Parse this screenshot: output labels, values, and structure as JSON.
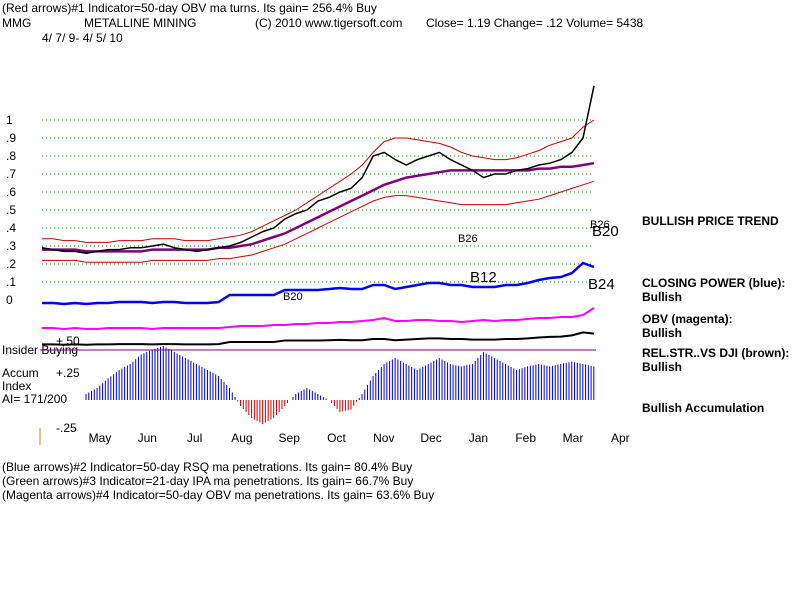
{
  "header": {
    "line1": "(Red arrows)#1 Indicator=50-day OBV ma turns.  Its gain= 256.4% Buy",
    "ticker": "MMG",
    "company": "METALLINE  MINING",
    "copyright": "(C) 2010 www.tigersoft.com",
    "quote": "Close=  1.19  Change= .12 Volume= 5438",
    "date_range": "4/ 7/ 9- 4/ 5/ 10"
  },
  "footer": {
    "lines": [
      "(Blue arrows)#2 Indicator=50-day RSQ ma penetrations.  Its gain= 80.4% Buy",
      "(Green arrows)#3 Indicator=21-day IPA ma penetrations.  Its gain= 66.7% Buy",
      "(Magenta arrows)#4 Indicator=50-day OBV ma penetrations.  Its gain= 63.6% Buy"
    ]
  },
  "right_panel": {
    "price_trend": "BULLISH PRICE TREND",
    "closing_power": "CLOSING POWER (blue):",
    "closing_power_status": "Bullish",
    "obv": "OBV (magenta):",
    "obv_status": "Bullish",
    "relstr": "REL.STR..VS DJI (brown):",
    "relstr_status": "Bullish",
    "accumulation": "Bullish Accumulation"
  },
  "left_panel": {
    "insider": "Insider Buying",
    "accum_label1": "Accum",
    "accum_label2": "Index",
    "ai": "AI= 171/200"
  },
  "chart_data": {
    "type": "line",
    "price_axis_ticks": [
      "1",
      ".9",
      ".8",
      ".7",
      ".6",
      ".5",
      ".4",
      ".3",
      ".2",
      ".1",
      "0"
    ],
    "accum_axis_ticks": [
      "+.50",
      "+.25",
      "-.25"
    ],
    "x_ticks": [
      "May",
      "Jun",
      "Jul",
      "Aug",
      "Sep",
      "Oct",
      "Nov",
      "Dec",
      "Jan",
      "Feb",
      "Mar",
      "Apr"
    ],
    "ylim": [
      0,
      1.2
    ],
    "price_close": [
      0.29,
      0.28,
      0.27,
      0.27,
      0.26,
      0.27,
      0.28,
      0.28,
      0.29,
      0.29,
      0.3,
      0.31,
      0.29,
      0.28,
      0.27,
      0.28,
      0.29,
      0.3,
      0.32,
      0.35,
      0.38,
      0.4,
      0.45,
      0.48,
      0.5,
      0.55,
      0.57,
      0.6,
      0.62,
      0.68,
      0.8,
      0.82,
      0.78,
      0.75,
      0.78,
      0.8,
      0.82,
      0.78,
      0.75,
      0.72,
      0.68,
      0.7,
      0.7,
      0.72,
      0.73,
      0.75,
      0.76,
      0.78,
      0.82,
      0.9,
      1.19
    ],
    "price_ma": [
      0.28,
      0.28,
      0.28,
      0.28,
      0.27,
      0.27,
      0.27,
      0.27,
      0.27,
      0.27,
      0.28,
      0.28,
      0.28,
      0.28,
      0.28,
      0.28,
      0.29,
      0.29,
      0.3,
      0.31,
      0.33,
      0.35,
      0.37,
      0.4,
      0.43,
      0.46,
      0.49,
      0.52,
      0.55,
      0.58,
      0.61,
      0.64,
      0.66,
      0.68,
      0.69,
      0.7,
      0.71,
      0.72,
      0.72,
      0.72,
      0.72,
      0.72,
      0.72,
      0.72,
      0.72,
      0.73,
      0.73,
      0.74,
      0.74,
      0.75,
      0.76
    ],
    "upper_band": [
      0.34,
      0.34,
      0.33,
      0.33,
      0.32,
      0.32,
      0.32,
      0.33,
      0.33,
      0.33,
      0.34,
      0.34,
      0.34,
      0.33,
      0.33,
      0.33,
      0.34,
      0.35,
      0.36,
      0.38,
      0.41,
      0.44,
      0.47,
      0.5,
      0.54,
      0.58,
      0.62,
      0.66,
      0.7,
      0.75,
      0.82,
      0.88,
      0.9,
      0.9,
      0.89,
      0.88,
      0.87,
      0.85,
      0.82,
      0.8,
      0.79,
      0.78,
      0.78,
      0.79,
      0.81,
      0.83,
      0.86,
      0.88,
      0.9,
      0.96,
      1.0
    ],
    "lower_band": [
      0.22,
      0.22,
      0.22,
      0.22,
      0.21,
      0.21,
      0.21,
      0.21,
      0.21,
      0.21,
      0.22,
      0.22,
      0.22,
      0.22,
      0.22,
      0.22,
      0.23,
      0.23,
      0.24,
      0.25,
      0.27,
      0.29,
      0.31,
      0.34,
      0.37,
      0.4,
      0.43,
      0.46,
      0.49,
      0.52,
      0.55,
      0.57,
      0.58,
      0.58,
      0.57,
      0.56,
      0.55,
      0.54,
      0.53,
      0.53,
      0.53,
      0.53,
      0.53,
      0.54,
      0.55,
      0.56,
      0.58,
      0.6,
      0.62,
      0.64,
      0.66
    ],
    "closing_power": [
      0.02,
      0.02,
      0.01,
      0.02,
      0.01,
      0.02,
      0.02,
      0.03,
      0.03,
      0.03,
      0.02,
      0.03,
      0.03,
      0.02,
      0.02,
      0.02,
      0.03,
      0.1,
      0.1,
      0.1,
      0.1,
      0.1,
      0.15,
      0.15,
      0.15,
      0.15,
      0.16,
      0.17,
      0.16,
      0.16,
      0.2,
      0.2,
      0.16,
      0.18,
      0.2,
      0.22,
      0.22,
      0.2,
      0.2,
      0.18,
      0.18,
      0.18,
      0.2,
      0.2,
      0.22,
      0.25,
      0.27,
      0.28,
      0.32,
      0.42,
      0.38
    ],
    "obv": [
      -0.1,
      -0.1,
      -0.11,
      -0.1,
      -0.11,
      -0.11,
      -0.1,
      -0.1,
      -0.1,
      -0.1,
      -0.11,
      -0.1,
      -0.1,
      -0.1,
      -0.1,
      -0.1,
      -0.1,
      -0.09,
      -0.08,
      -0.08,
      -0.08,
      -0.07,
      -0.07,
      -0.06,
      -0.06,
      -0.05,
      -0.05,
      -0.04,
      -0.04,
      -0.03,
      -0.02,
      0.0,
      -0.03,
      -0.03,
      -0.02,
      -0.02,
      -0.03,
      -0.03,
      -0.04,
      -0.03,
      -0.02,
      -0.03,
      -0.02,
      -0.02,
      -0.01,
      0.0,
      0.0,
      0.01,
      0.01,
      0.03,
      0.1
    ],
    "accum_index": [
      0.05,
      0.1,
      0.18,
      0.25,
      0.3,
      0.38,
      0.42,
      0.45,
      0.4,
      0.35,
      0.3,
      0.25,
      0.2,
      0.1,
      -0.05,
      -0.15,
      -0.2,
      -0.15,
      -0.05,
      0.05,
      0.1,
      0.05,
      0.0,
      -0.1,
      -0.08,
      0.05,
      0.2,
      0.3,
      0.35,
      0.3,
      0.25,
      0.3,
      0.35,
      0.3,
      0.28,
      0.3,
      0.4,
      0.35,
      0.3,
      0.25,
      0.28,
      0.3,
      0.28,
      0.3,
      0.32,
      0.3,
      0.28,
      0.3,
      0.32,
      0.4,
      0.35
    ],
    "annotations": [
      "B26",
      "B12",
      "B20",
      "B24",
      "B26",
      "B20"
    ]
  }
}
